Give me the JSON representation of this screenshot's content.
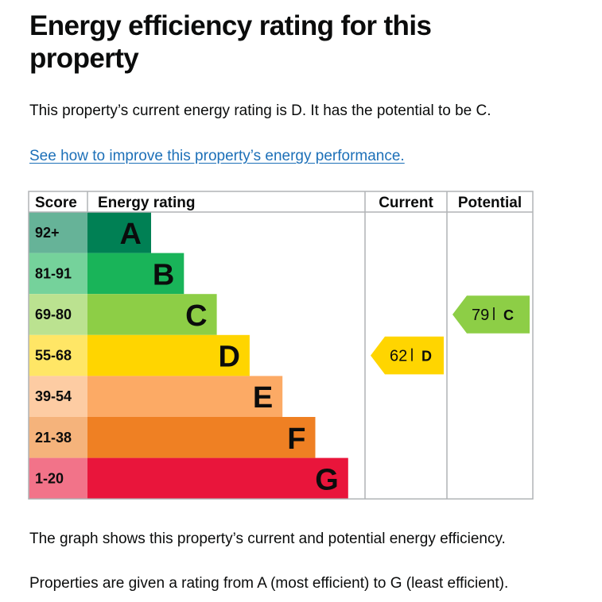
{
  "page": {
    "title": "Energy efficiency rating for this property",
    "summary": "This property’s current energy rating is D. It has the potential to be C.",
    "improve_link": "See how to improve this property’s energy performance.",
    "graph_note": "The graph shows this property’s current and potential energy efficiency.",
    "rating_note": "Properties are given a rating from A (most efficient) to G (least efficient)."
  },
  "chart_data": {
    "type": "table",
    "columns": [
      "Score",
      "Energy rating",
      "Current",
      "Potential"
    ],
    "bands": [
      {
        "letter": "A",
        "score": "92+",
        "color": "#008054",
        "score_color": "#66b398"
      },
      {
        "letter": "B",
        "score": "81-91",
        "color": "#19b459",
        "score_color": "#75d29b"
      },
      {
        "letter": "C",
        "score": "69-80",
        "color": "#8dce46",
        "score_color": "#bbe290"
      },
      {
        "letter": "D",
        "score": "55-68",
        "color": "#ffd500",
        "score_color": "#ffe666"
      },
      {
        "letter": "E",
        "score": "39-54",
        "color": "#fcaa65",
        "score_color": "#fdcca3"
      },
      {
        "letter": "F",
        "score": "21-38",
        "color": "#ef8023",
        "score_color": "#f5b37b"
      },
      {
        "letter": "G",
        "score": "1-20",
        "color": "#e9153b",
        "score_color": "#f27389"
      }
    ],
    "current": {
      "value": 62,
      "band": "D",
      "color": "#ffd500"
    },
    "potential": {
      "value": 79,
      "band": "C",
      "color": "#8dce46"
    }
  }
}
